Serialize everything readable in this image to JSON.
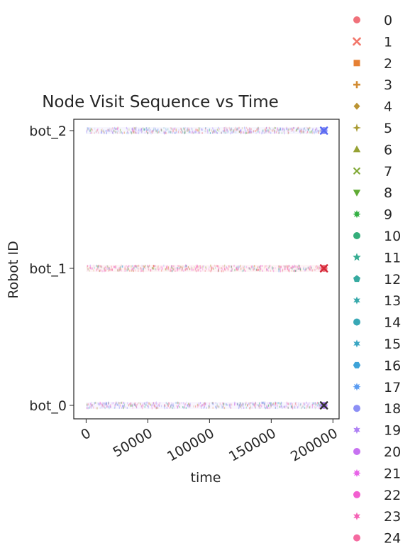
{
  "chart_data": {
    "type": "scatter",
    "title": "Node Visit Sequence vs Time",
    "xlabel": "time",
    "ylabel": "Robot ID",
    "xlim": [
      -10000,
      205000
    ],
    "x_ticks": [
      "0",
      "50000",
      "100000",
      "150000",
      "200000"
    ],
    "x_tick_values": [
      0,
      50000,
      100000,
      150000,
      200000
    ],
    "categories": [
      "bot_0",
      "bot_1",
      "bot_2"
    ],
    "grid": false,
    "legend_placement": "outside-right",
    "legend": [
      {
        "name": "0",
        "color": "#f0717a",
        "marker": "circle"
      },
      {
        "name": "1",
        "color": "#f2766a",
        "marker": "x"
      },
      {
        "name": "2",
        "color": "#e68033",
        "marker": "square"
      },
      {
        "name": "3",
        "color": "#d28c33",
        "marker": "plus"
      },
      {
        "name": "4",
        "color": "#bb9433",
        "marker": "diamond"
      },
      {
        "name": "5",
        "color": "#a99b33",
        "marker": "star4"
      },
      {
        "name": "6",
        "color": "#96a233",
        "marker": "triangle-up"
      },
      {
        "name": "7",
        "color": "#7fa733",
        "marker": "x-small"
      },
      {
        "name": "8",
        "color": "#5fab34",
        "marker": "triangle-down"
      },
      {
        "name": "9",
        "color": "#33b043",
        "marker": "star8"
      },
      {
        "name": "10",
        "color": "#34ae7a",
        "marker": "circle"
      },
      {
        "name": "11",
        "color": "#35ac91",
        "marker": "star5"
      },
      {
        "name": "12",
        "color": "#36aaa0",
        "marker": "pentagon"
      },
      {
        "name": "13",
        "color": "#37a9ab",
        "marker": "star6"
      },
      {
        "name": "14",
        "color": "#38a8b6",
        "marker": "circle"
      },
      {
        "name": "15",
        "color": "#3aa6c3",
        "marker": "star6"
      },
      {
        "name": "16",
        "color": "#3ea3d8",
        "marker": "hexagon"
      },
      {
        "name": "17",
        "color": "#5a9cf2",
        "marker": "star8"
      },
      {
        "name": "18",
        "color": "#8c8ff5",
        "marker": "circle"
      },
      {
        "name": "19",
        "color": "#ae80f4",
        "marker": "star6"
      },
      {
        "name": "20",
        "color": "#c772f1",
        "marker": "circle"
      },
      {
        "name": "21",
        "color": "#e863e8",
        "marker": "star8"
      },
      {
        "name": "22",
        "color": "#f25fd0",
        "marker": "circle"
      },
      {
        "name": "23",
        "color": "#f563b6",
        "marker": "star6"
      },
      {
        "name": "24",
        "color": "#f56aa0",
        "marker": "circle"
      }
    ],
    "bands": [
      {
        "robot": "bot_0",
        "x_range": [
          0,
          191000
        ],
        "dominant_colors": [
          "#ae80f4",
          "#8c8ff5",
          "#f56aa0"
        ],
        "end_marker_color": "#333333"
      },
      {
        "robot": "bot_1",
        "x_range": [
          0,
          191000
        ],
        "dominant_colors": [
          "#f0717a",
          "#f25fd0",
          "#f563b6"
        ],
        "end_marker_color": "#d42a3a"
      },
      {
        "robot": "bot_2",
        "x_range": [
          0,
          191000
        ],
        "dominant_colors": [
          "#8c8ff5",
          "#f0717a",
          "#ae80f4"
        ],
        "end_marker_color": "#5a6cf2"
      }
    ]
  }
}
